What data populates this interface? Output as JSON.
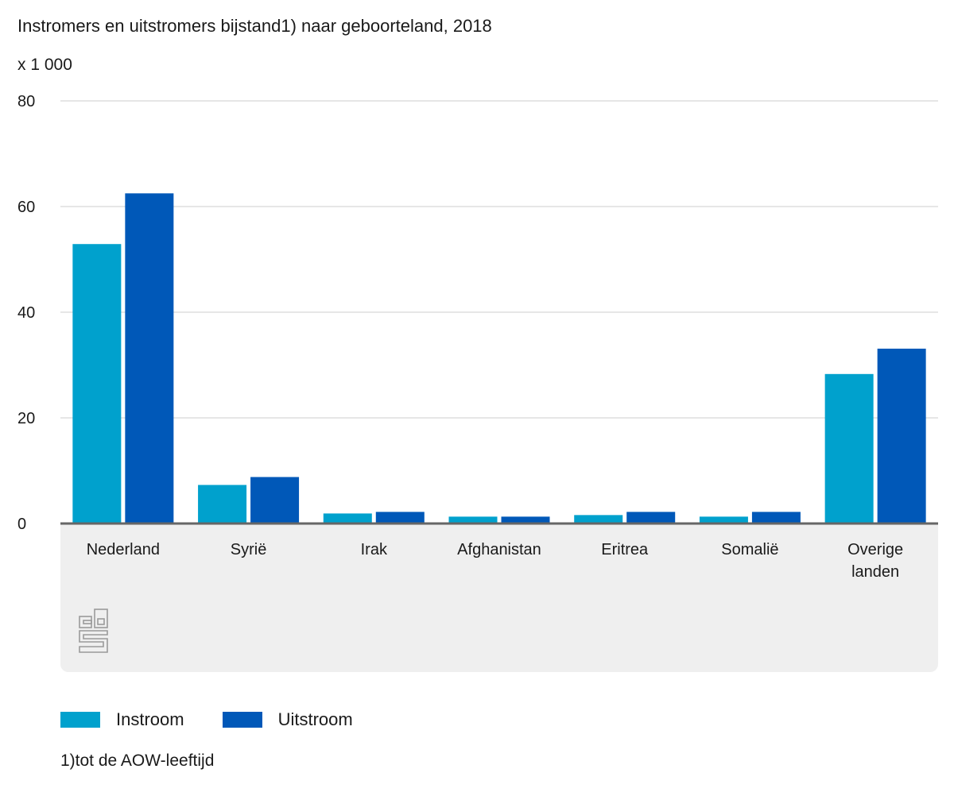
{
  "title": "Instromers en uitstromers bijstand1) naar geboorteland, 2018",
  "unit_label": "x 1 000",
  "footnote": "1)tot de AOW-leeftijd",
  "colors": {
    "instroom": "#00a1cd",
    "uitstroom": "#0058b8",
    "grid": "#cccccc",
    "axis": "#666666",
    "panel": "#efefef",
    "logo": "#9a9a9a"
  },
  "logo_icon": "cbs-logo-icon",
  "chart_data": {
    "type": "bar",
    "title": "Instromers en uitstromers bijstand1) naar geboorteland, 2018",
    "ylabel": "x 1 000",
    "xlabel": "",
    "ylim": [
      0,
      80
    ],
    "yticks": [
      0,
      20,
      40,
      60,
      80
    ],
    "grid": true,
    "legend_position": "bottom",
    "categories": [
      "Nederland",
      "Syrië",
      "Irak",
      "Afghanistan",
      "Eritrea",
      "Somalië",
      "Overige landen"
    ],
    "category_labels": [
      [
        "Nederland"
      ],
      [
        "Syrië"
      ],
      [
        "Irak"
      ],
      [
        "Afghanistan"
      ],
      [
        "Eritrea"
      ],
      [
        "Somalië"
      ],
      [
        "Overige",
        "landen"
      ]
    ],
    "series": [
      {
        "name": "Instroom",
        "color": "#00a1cd",
        "values": [
          52.9,
          7.3,
          1.9,
          1.3,
          1.6,
          1.3,
          28.3
        ]
      },
      {
        "name": "Uitstroom",
        "color": "#0058b8",
        "values": [
          62.5,
          8.8,
          2.2,
          1.3,
          2.2,
          2.2,
          33.1
        ]
      }
    ]
  }
}
